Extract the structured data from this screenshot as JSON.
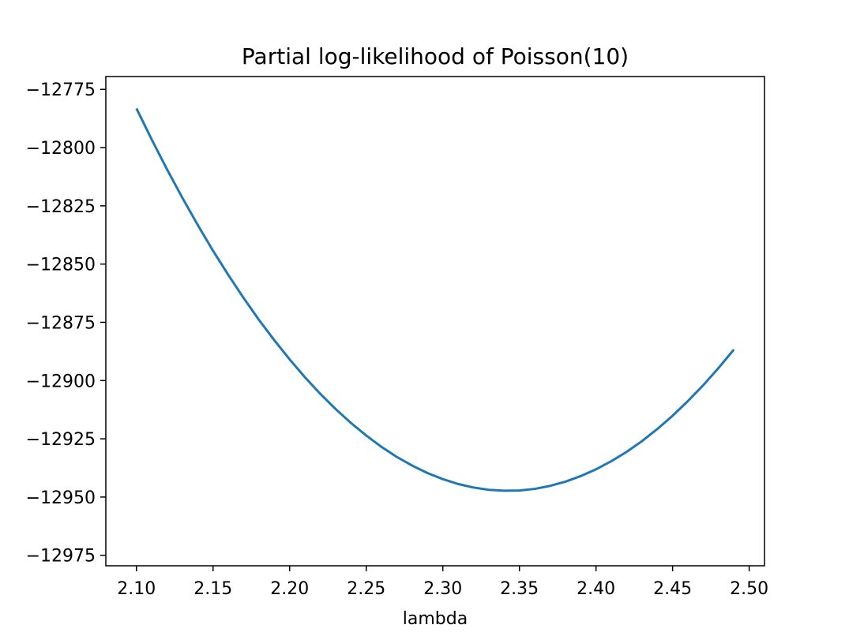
{
  "chart_data": {
    "type": "line",
    "title": "Partial log-likelihood of Poisson(10)",
    "xlabel": "lambda",
    "ylabel": "",
    "xlim": [
      2.08,
      2.51
    ],
    "ylim": [
      -12979.5,
      -12769.5
    ],
    "grid": false,
    "x_ticks": [
      2.1,
      2.15,
      2.2,
      2.25,
      2.3,
      2.35,
      2.4,
      2.45,
      2.5
    ],
    "x_tick_labels": [
      "2.10",
      "2.15",
      "2.20",
      "2.25",
      "2.30",
      "2.35",
      "2.40",
      "2.45",
      "2.50"
    ],
    "y_ticks": [
      -12775,
      -12800,
      -12825,
      -12850,
      -12875,
      -12900,
      -12925,
      -12950,
      -12975
    ],
    "y_tick_labels": [
      "−12775",
      "−12800",
      "−12825",
      "−12850",
      "−12875",
      "−12900",
      "−12925",
      "−12950",
      "−12975"
    ],
    "series": [
      {
        "color": "#1f77b4",
        "x": [
          2.1,
          2.11,
          2.12,
          2.13,
          2.14,
          2.15,
          2.16,
          2.17,
          2.18,
          2.19,
          2.2,
          2.21,
          2.22,
          2.23,
          2.24,
          2.25,
          2.26,
          2.27,
          2.28,
          2.29,
          2.3,
          2.31,
          2.32,
          2.33,
          2.34,
          2.35,
          2.36,
          2.37,
          2.38,
          2.39,
          2.4,
          2.41,
          2.42,
          2.43,
          2.44,
          2.45,
          2.46,
          2.47,
          2.48,
          2.49
        ],
        "y": [
          -12783.2,
          -12796.6,
          -12809.4,
          -12821.6,
          -12833.2,
          -12844.3,
          -12854.7,
          -12864.6,
          -12874.0,
          -12882.7,
          -12890.9,
          -12898.6,
          -12905.7,
          -12912.2,
          -12918.2,
          -12923.6,
          -12928.5,
          -12932.8,
          -12936.5,
          -12939.7,
          -12942.3,
          -12944.4,
          -12945.9,
          -12946.9,
          -12947.3,
          -12947.2,
          -12946.5,
          -12945.2,
          -12943.4,
          -12941.0,
          -12938.1,
          -12934.6,
          -12930.6,
          -12926.0,
          -12920.8,
          -12915.1,
          -12908.8,
          -12902.0,
          -12894.6,
          -12886.7
        ]
      }
    ]
  }
}
